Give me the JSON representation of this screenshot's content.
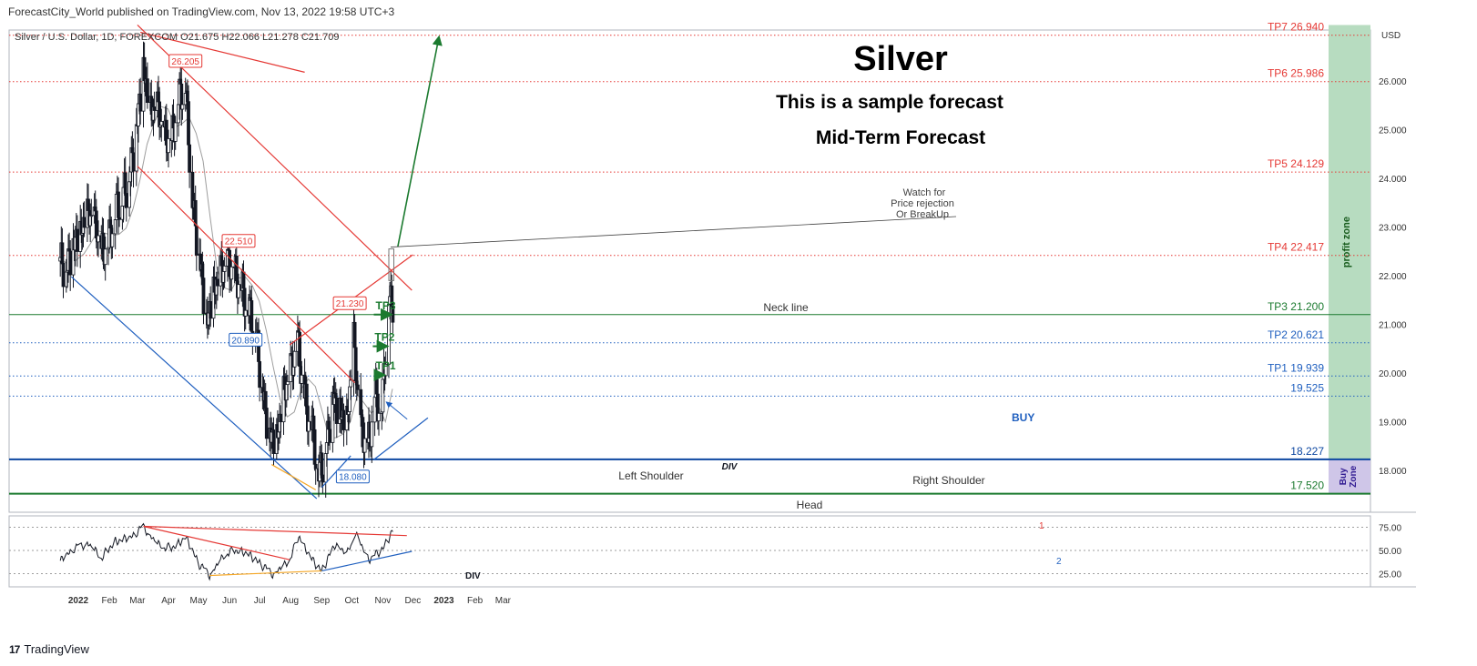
{
  "header": {
    "published_by": "ForecastCity_World published on TradingView.com, Nov 13, 2022 19:58 UTC+3"
  },
  "footer": {
    "brand": "TradingView",
    "brand_logo_text": "17"
  },
  "colors": {
    "red": "#e53935",
    "green": "#1b7a2f",
    "blue": "#1f5fbf",
    "orange": "#f5a623",
    "profit_zone": "#b7dcc0",
    "buy_zone": "#cfc6e8"
  },
  "chart_data": {
    "type": "candlestick",
    "symbol_line": "Silver / U.S. Dollar, 1D, FOREXCOM  O21.675  H22.066  L21.278  C21.709",
    "title": "Silver",
    "subtitle_1": "This is a sample forecast",
    "subtitle_2": "Mid-Term Forecast",
    "currency": "USD",
    "y_ticks": [
      {
        "v": 26.0,
        "label": "26.000"
      },
      {
        "v": 25.0,
        "label": "25.000"
      },
      {
        "v": 24.0,
        "label": "24.000"
      },
      {
        "v": 23.0,
        "label": "23.000"
      },
      {
        "v": 22.0,
        "label": "22.000"
      },
      {
        "v": 21.0,
        "label": "21.000"
      },
      {
        "v": 20.0,
        "label": "20.000"
      },
      {
        "v": 19.0,
        "label": "19.000"
      },
      {
        "v": 18.0,
        "label": "18.000"
      }
    ],
    "x_ticks": [
      {
        "date": "2022-01-01",
        "label": "2022"
      },
      {
        "date": "2022-02-01",
        "label": "Feb"
      },
      {
        "date": "2022-03-01",
        "label": "Mar"
      },
      {
        "date": "2022-04-01",
        "label": "Apr"
      },
      {
        "date": "2022-05-01",
        "label": "May"
      },
      {
        "date": "2022-06-01",
        "label": "Jun"
      },
      {
        "date": "2022-07-01",
        "label": "Jul"
      },
      {
        "date": "2022-08-01",
        "label": "Aug"
      },
      {
        "date": "2022-09-01",
        "label": "Sep"
      },
      {
        "date": "2022-10-01",
        "label": "Oct"
      },
      {
        "date": "2022-11-01",
        "label": "Nov"
      },
      {
        "date": "2022-12-01",
        "label": "Dec"
      },
      {
        "date": "2023-01-01",
        "label": "2023"
      },
      {
        "date": "2023-02-01",
        "label": "Feb"
      },
      {
        "date": "2023-03-01",
        "label": "Mar"
      }
    ],
    "levels": [
      {
        "name": "TP7",
        "value": 26.94,
        "label": "TP7  26.940",
        "color": "#e53935",
        "style": "dotted"
      },
      {
        "name": "TP6",
        "value": 25.986,
        "label": "TP6  25.986",
        "color": "#e53935",
        "style": "dotted"
      },
      {
        "name": "TP5",
        "value": 24.129,
        "label": "TP5  24.129",
        "color": "#e53935",
        "style": "dotted"
      },
      {
        "name": "TP4",
        "value": 22.417,
        "label": "TP4  22.417",
        "color": "#e53935",
        "style": "dotted"
      },
      {
        "name": "TP3",
        "value": 21.2,
        "label": "TP3  21.200",
        "color": "#1b7a2f",
        "style": "solid"
      },
      {
        "name": "TP2",
        "value": 20.621,
        "label": "TP2  20.621",
        "color": "#1f5fbf",
        "style": "dotted"
      },
      {
        "name": "TP1",
        "value": 19.939,
        "label": "TP1  19.939",
        "color": "#1f5fbf",
        "style": "dotted"
      },
      {
        "name": "L19525",
        "value": 19.525,
        "label": "19.525",
        "color": "#1f5fbf",
        "style": "dotted"
      },
      {
        "name": "L18227",
        "value": 18.227,
        "label": "18.227",
        "color": "#0d47a1",
        "style": "thick"
      },
      {
        "name": "L17520",
        "value": 17.52,
        "label": "17.520",
        "color": "#1b7a2f",
        "style": "thick"
      }
    ],
    "zones": [
      {
        "name": "profit zone",
        "label": "profit zone",
        "from": 18.227,
        "to": 27.15
      },
      {
        "name": "Buy Zone",
        "label": "Buy Zone",
        "from": 17.52,
        "to": 18.227
      }
    ],
    "price_tags": [
      {
        "date": "2022-04-18",
        "value": 26.205,
        "label": "26.205",
        "color": "#e53935"
      },
      {
        "date": "2022-06-10",
        "value": 22.51,
        "label": "22.510",
        "color": "#e53935"
      },
      {
        "date": "2022-06-17",
        "value": 20.89,
        "label": "20.890",
        "color": "#1f5fbf"
      },
      {
        "date": "2022-09-29",
        "value": 21.23,
        "label": "21.230",
        "color": "#e53935"
      },
      {
        "date": "2022-10-02",
        "value": 18.08,
        "label": "18.080",
        "color": "#1f5fbf"
      }
    ],
    "annotations": {
      "neck_line": "Neck line",
      "left_shoulder": "Left Shoulder",
      "head": "Head",
      "right_shoulder": "Right Shoulder",
      "div": "DIV",
      "buy": "BUY",
      "watch_1": "Watch for",
      "watch_2": "Price rejection",
      "watch_3": "Or BreakUp",
      "tp1": "TP1",
      "tp2": "TP2",
      "tp3": "TP3"
    },
    "trend_lines": [
      {
        "name": "red-top-short",
        "color": "#e53935",
        "p1": {
          "date": "2022-03-04",
          "v": 27.0
        },
        "p2": {
          "date": "2022-08-15",
          "v": 26.18
        }
      },
      {
        "name": "red-main-down",
        "color": "#e53935",
        "p1": {
          "date": "2022-03-01",
          "v": 27.15
        },
        "p2": {
          "date": "2022-11-30",
          "v": 21.7
        }
      },
      {
        "name": "red-inner-down",
        "color": "#e53935",
        "p1": {
          "date": "2022-03-01",
          "v": 24.25
        },
        "p2": {
          "date": "2022-10-04",
          "v": 19.8
        }
      },
      {
        "name": "neck-line",
        "color": "#e53935",
        "p1": {
          "date": "2022-07-31",
          "v": 20.58
        },
        "p2": {
          "date": "2022-12-01",
          "v": 22.43
        }
      },
      {
        "name": "blue-down",
        "color": "#1f5fbf",
        "p1": {
          "date": "2021-12-25",
          "v": 21.98
        },
        "p2": {
          "date": "2022-08-27",
          "v": 17.42
        }
      },
      {
        "name": "blue-up",
        "color": "#1f5fbf",
        "p1": {
          "date": "2022-09-01",
          "v": 17.65
        },
        "p2": {
          "date": "2022-09-30",
          "v": 18.3
        }
      },
      {
        "name": "blue-up-long",
        "color": "#1f5fbf",
        "p1": {
          "date": "2022-10-23",
          "v": 18.22
        },
        "p2": {
          "date": "2022-12-16",
          "v": 19.08
        }
      },
      {
        "name": "orange-div",
        "color": "#f5a623",
        "p1": {
          "date": "2022-07-13",
          "v": 18.12
        },
        "p2": {
          "date": "2022-08-26",
          "v": 17.6
        }
      }
    ],
    "forecast_arrow": {
      "from": {
        "date": "2022-11-16",
        "v": 22.6
      },
      "to": {
        "date": "2022-12-27",
        "v": 26.9
      }
    },
    "watch_box": {
      "from_date": "2022-11-07",
      "to_date": "2022-11-12",
      "low": 21.9,
      "high": 22.55
    },
    "tp_arrows": [
      {
        "label": "TP1",
        "date_from": "2022-10-23",
        "date_to": "2022-11-02",
        "v": 19.96
      },
      {
        "label": "TP2",
        "date_from": "2022-10-22",
        "date_to": "2022-11-05",
        "v": 20.55
      },
      {
        "label": "TP3",
        "date_from": "2022-10-23",
        "date_to": "2022-11-09",
        "v": 21.2
      }
    ],
    "buy_pointer": {
      "from": {
        "date": "2022-11-03",
        "v": 19.4
      },
      "to": {
        "date": "2022-11-09",
        "v": 19.2
      }
    },
    "candles_summary": [
      {
        "date": "2021-12-14",
        "v": 22.3
      },
      {
        "date": "2021-12-20",
        "v": 22.1
      },
      {
        "date": "2021-12-27",
        "v": 22.6
      },
      {
        "date": "2022-01-03",
        "v": 22.8
      },
      {
        "date": "2022-01-10",
        "v": 23.2
      },
      {
        "date": "2022-01-17",
        "v": 23.1
      },
      {
        "date": "2022-01-24",
        "v": 22.4
      },
      {
        "date": "2022-01-31",
        "v": 22.6
      },
      {
        "date": "2022-02-07",
        "v": 23.3
      },
      {
        "date": "2022-02-14",
        "v": 23.6
      },
      {
        "date": "2022-02-21",
        "v": 24.0
      },
      {
        "date": "2022-02-28",
        "v": 25.0
      },
      {
        "date": "2022-03-07",
        "v": 26.2
      },
      {
        "date": "2022-03-14",
        "v": 25.3
      },
      {
        "date": "2022-03-21",
        "v": 25.4
      },
      {
        "date": "2022-03-28",
        "v": 24.8
      },
      {
        "date": "2022-04-04",
        "v": 24.7
      },
      {
        "date": "2022-04-11",
        "v": 25.6
      },
      {
        "date": "2022-04-18",
        "v": 25.9
      },
      {
        "date": "2022-04-25",
        "v": 23.5
      },
      {
        "date": "2022-05-02",
        "v": 22.4
      },
      {
        "date": "2022-05-09",
        "v": 21.0
      },
      {
        "date": "2022-05-16",
        "v": 21.6
      },
      {
        "date": "2022-05-23",
        "v": 22.0
      },
      {
        "date": "2022-05-30",
        "v": 22.2
      },
      {
        "date": "2022-06-06",
        "v": 22.0
      },
      {
        "date": "2022-06-13",
        "v": 21.7
      },
      {
        "date": "2022-06-20",
        "v": 21.3
      },
      {
        "date": "2022-06-27",
        "v": 20.9
      },
      {
        "date": "2022-07-04",
        "v": 19.6
      },
      {
        "date": "2022-07-11",
        "v": 18.7
      },
      {
        "date": "2022-07-18",
        "v": 18.6
      },
      {
        "date": "2022-07-25",
        "v": 19.5
      },
      {
        "date": "2022-08-01",
        "v": 20.0
      },
      {
        "date": "2022-08-08",
        "v": 20.6
      },
      {
        "date": "2022-08-15",
        "v": 19.4
      },
      {
        "date": "2022-08-22",
        "v": 18.9
      },
      {
        "date": "2022-08-29",
        "v": 17.9
      },
      {
        "date": "2022-09-05",
        "v": 18.4
      },
      {
        "date": "2022-09-12",
        "v": 19.5
      },
      {
        "date": "2022-09-19",
        "v": 19.2
      },
      {
        "date": "2022-09-26",
        "v": 18.9
      },
      {
        "date": "2022-10-03",
        "v": 20.6
      },
      {
        "date": "2022-10-10",
        "v": 18.8
      },
      {
        "date": "2022-10-17",
        "v": 18.4
      },
      {
        "date": "2022-10-24",
        "v": 19.5
      },
      {
        "date": "2022-10-31",
        "v": 19.3
      },
      {
        "date": "2022-11-07",
        "v": 21.5
      }
    ],
    "rsi": {
      "ticks": [
        {
          "v": 75,
          "label": "75.00"
        },
        {
          "v": 50,
          "label": "50.00"
        },
        {
          "v": 25,
          "label": "25.00"
        }
      ],
      "summary": [
        {
          "date": "2021-12-14",
          "v": 38
        },
        {
          "date": "2021-12-27",
          "v": 52
        },
        {
          "date": "2022-01-10",
          "v": 58
        },
        {
          "date": "2022-01-24",
          "v": 42
        },
        {
          "date": "2022-02-07",
          "v": 60
        },
        {
          "date": "2022-02-21",
          "v": 63
        },
        {
          "date": "2022-03-07",
          "v": 76
        },
        {
          "date": "2022-03-21",
          "v": 56
        },
        {
          "date": "2022-04-04",
          "v": 52
        },
        {
          "date": "2022-04-18",
          "v": 64
        },
        {
          "date": "2022-05-02",
          "v": 35
        },
        {
          "date": "2022-05-12",
          "v": 24
        },
        {
          "date": "2022-05-30",
          "v": 48
        },
        {
          "date": "2022-06-13",
          "v": 50
        },
        {
          "date": "2022-06-27",
          "v": 40
        },
        {
          "date": "2022-07-14",
          "v": 25
        },
        {
          "date": "2022-07-28",
          "v": 35
        },
        {
          "date": "2022-08-10",
          "v": 65
        },
        {
          "date": "2022-08-22",
          "v": 40
        },
        {
          "date": "2022-09-01",
          "v": 28
        },
        {
          "date": "2022-09-15",
          "v": 58
        },
        {
          "date": "2022-09-26",
          "v": 45
        },
        {
          "date": "2022-10-04",
          "v": 68
        },
        {
          "date": "2022-10-19",
          "v": 40
        },
        {
          "date": "2022-11-01",
          "v": 52
        },
        {
          "date": "2022-11-11",
          "v": 71
        }
      ],
      "div_label": "DIV",
      "line_1_label": "1",
      "line_2_label": "2",
      "lines": [
        {
          "name": "rsi-red-top",
          "color": "#e53935",
          "p1": {
            "date": "2022-03-07",
            "v": 76
          },
          "p2": {
            "date": "2022-11-25",
            "v": 66
          }
        },
        {
          "name": "rsi-red-down",
          "color": "#e53935",
          "p1": {
            "date": "2022-03-07",
            "v": 76
          },
          "p2": {
            "date": "2022-07-31",
            "v": 40
          }
        },
        {
          "name": "rsi-orange",
          "color": "#f5a623",
          "p1": {
            "date": "2022-05-12",
            "v": 23
          },
          "p2": {
            "date": "2022-09-01",
            "v": 28
          }
        },
        {
          "name": "rsi-blue",
          "color": "#1f5fbf",
          "p1": {
            "date": "2022-09-01",
            "v": 28
          },
          "p2": {
            "date": "2022-11-30",
            "v": 49
          }
        }
      ]
    }
  }
}
